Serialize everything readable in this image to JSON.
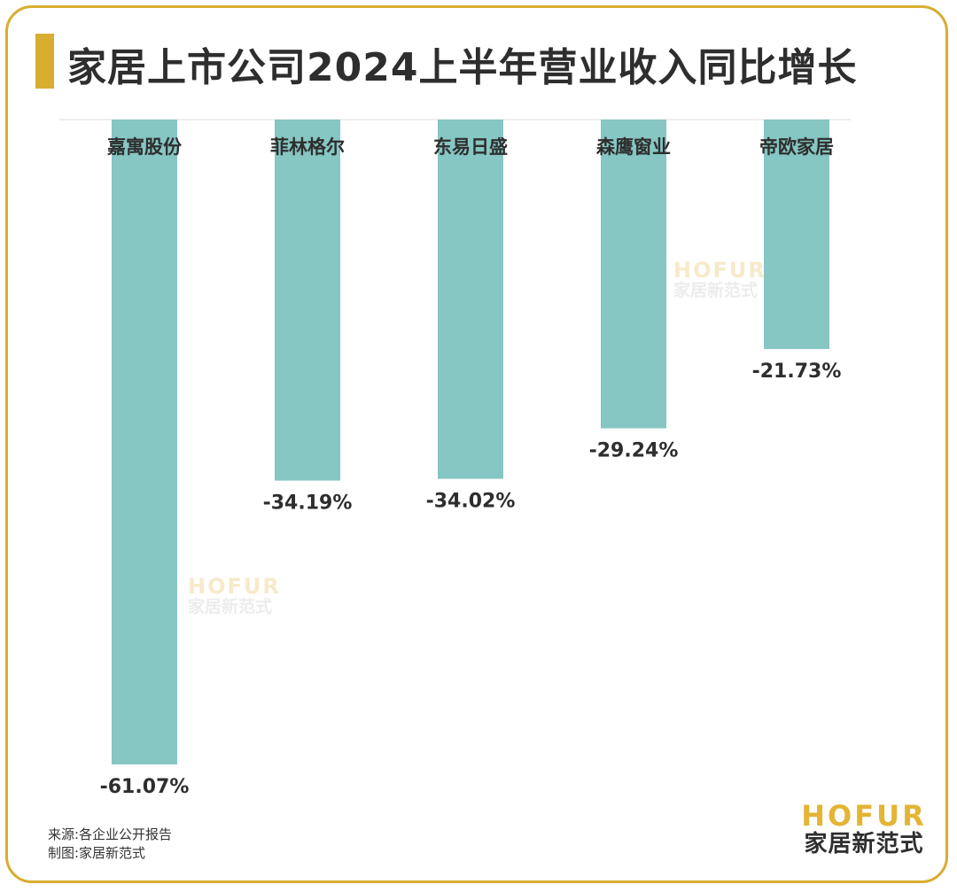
{
  "title": "家居上市公司2024上半年营业收入同比增长",
  "chart_data": {
    "type": "bar",
    "orientation": "vertical-negative",
    "categories": [
      "嘉寓股份",
      "菲林格尔",
      "东易日盛",
      "森鹰窗业",
      "帝欧家居"
    ],
    "values": [
      -61.07,
      -34.19,
      -34.02,
      -29.24,
      -21.73
    ],
    "value_labels": [
      "-61.07%",
      "-34.19%",
      "-34.02%",
      "-29.24%",
      "-21.73%"
    ],
    "ylim": [
      -65,
      0
    ],
    "grid": false,
    "legend": "none",
    "bar_color": "#86c6c3"
  },
  "footer": {
    "source": "来源:各企业公开报告",
    "credit": "制图:家居新范式"
  },
  "brand": {
    "en": "HOFUR",
    "cn": "家居新范式"
  },
  "watermark": {
    "en": "HOFUR",
    "cn": "家居新范式"
  },
  "colors": {
    "accent": "#d9ad2f",
    "bar": "#86c6c3",
    "text": "#2e2e2e"
  }
}
